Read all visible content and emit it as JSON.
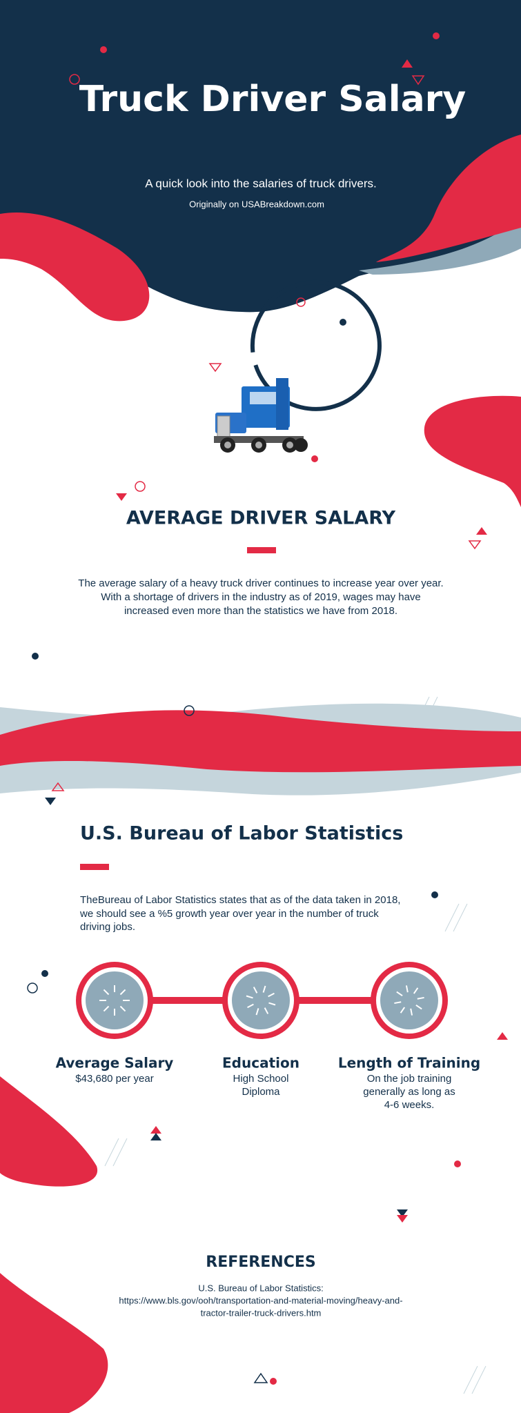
{
  "header": {
    "title": "Truck Driver Salary",
    "subtitle": "A quick look into the salaries of truck drivers.",
    "source": "Originally on USABreakdown.com"
  },
  "intro": {
    "heading": "AVERAGE DRIVER SALARY",
    "body": [
      "The average salary of a heavy truck driver continues to increase year over year.",
      "With a shortage of drivers in the industry as of 2019, wages may have",
      "increased even more than the statistics we have from 2018."
    ]
  },
  "bls": {
    "heading": "U.S. Bureau of Labor Statistics",
    "body": [
      "TheBureau of Labor Statistics states that as of the data taken in 2018,",
      "we should see a %5 growth year over year in the number of truck",
      "driving jobs."
    ]
  },
  "stats": [
    {
      "label": "Average Salary",
      "value": [
        "$43,680 per year"
      ]
    },
    {
      "label": "Education",
      "value": [
        "High School",
        "Diploma"
      ]
    },
    {
      "label": "Length of Training",
      "value": [
        "On the job training",
        "generally as long as",
        "4-6 weeks."
      ]
    }
  ],
  "references": {
    "heading": "REFERENCES",
    "lines": [
      "U.S. Bureau of Labor Statistics:",
      "https://www.bls.gov/ooh/transportation-and-material-moving/heavy-and-",
      "tractor-trailer-truck-drivers.htm"
    ]
  }
}
